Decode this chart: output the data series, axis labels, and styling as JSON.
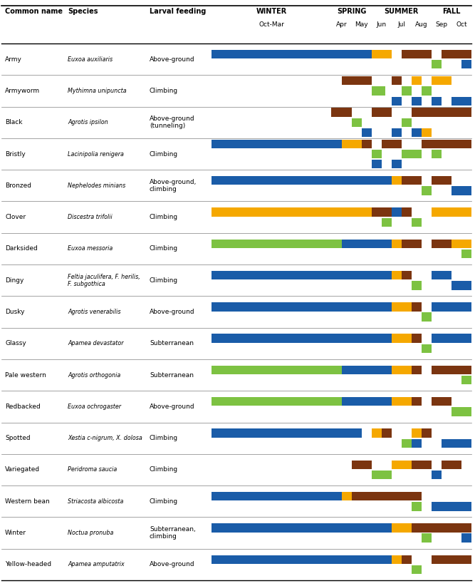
{
  "colors": {
    "blue": "#1A5CA8",
    "orange": "#F5A800",
    "brown": "#7B3510",
    "green": "#7DC242"
  },
  "seasons_info": [
    [
      "WINTER",
      0,
      6
    ],
    [
      "SPRING",
      6,
      8
    ],
    [
      "SUMMER",
      8,
      11
    ],
    [
      "FALL",
      11,
      13
    ]
  ],
  "months_info": [
    [
      "Oct-Mar",
      0,
      6
    ],
    [
      "Apr",
      6,
      7
    ],
    [
      "May",
      7,
      8
    ],
    [
      "Jun",
      8,
      9
    ],
    [
      "Jul",
      9,
      10
    ],
    [
      "Aug",
      10,
      11
    ],
    [
      "Sep",
      11,
      12
    ],
    [
      "Oct",
      12,
      13
    ]
  ],
  "time_total": 13,
  "species": [
    {
      "common": "Army",
      "species": "Euxoa auxiliaris",
      "feeding": "Above-ground",
      "rows": [
        [
          {
            "s": 0,
            "e": 8,
            "c": "blue"
          },
          {
            "s": 8,
            "e": 9,
            "c": "orange"
          },
          {
            "s": 9.5,
            "e": 11,
            "c": "brown"
          },
          {
            "s": 11.5,
            "e": 13,
            "c": "brown"
          }
        ],
        [
          {
            "s": 11,
            "e": 11.5,
            "c": "green"
          },
          {
            "s": 12.5,
            "e": 13,
            "c": "blue"
          }
        ]
      ]
    },
    {
      "common": "Armyworm",
      "species": "Mythimna unipuncta",
      "feeding": "Climbing",
      "rows": [
        [
          {
            "s": 6.5,
            "e": 8,
            "c": "brown"
          },
          {
            "s": 9,
            "e": 9.5,
            "c": "brown"
          },
          {
            "s": 10,
            "e": 10.5,
            "c": "orange"
          },
          {
            "s": 11,
            "e": 12,
            "c": "orange"
          }
        ],
        [
          {
            "s": 8,
            "e": 8.7,
            "c": "green"
          },
          {
            "s": 9.5,
            "e": 10,
            "c": "green"
          },
          {
            "s": 10.5,
            "e": 11,
            "c": "green"
          }
        ],
        [
          {
            "s": 9,
            "e": 9.5,
            "c": "blue"
          },
          {
            "s": 10,
            "e": 10.5,
            "c": "blue"
          },
          {
            "s": 11,
            "e": 11.5,
            "c": "blue"
          },
          {
            "s": 12,
            "e": 13,
            "c": "blue"
          }
        ]
      ]
    },
    {
      "common": "Black",
      "species": "Agrotis ipsilon",
      "feeding": "Above-ground\n(tunneling)",
      "rows": [
        [
          {
            "s": 6,
            "e": 7,
            "c": "brown"
          },
          {
            "s": 8,
            "e": 9,
            "c": "brown"
          },
          {
            "s": 10,
            "e": 13,
            "c": "brown"
          }
        ],
        [
          {
            "s": 7,
            "e": 7.5,
            "c": "green"
          },
          {
            "s": 9.5,
            "e": 10,
            "c": "green"
          }
        ],
        [
          {
            "s": 7.5,
            "e": 8,
            "c": "blue"
          },
          {
            "s": 9,
            "e": 9.5,
            "c": "blue"
          },
          {
            "s": 10,
            "e": 10.5,
            "c": "blue"
          },
          {
            "s": 10.5,
            "e": 11,
            "c": "orange"
          }
        ]
      ]
    },
    {
      "common": "Bristly",
      "species": "Lacinipolia renigera",
      "feeding": "Climbing",
      "rows": [
        [
          {
            "s": 0,
            "e": 6.5,
            "c": "blue"
          },
          {
            "s": 6.5,
            "e": 7.5,
            "c": "orange"
          },
          {
            "s": 7.5,
            "e": 8,
            "c": "brown"
          },
          {
            "s": 8.5,
            "e": 9.5,
            "c": "brown"
          },
          {
            "s": 10.5,
            "e": 11,
            "c": "brown"
          },
          {
            "s": 11,
            "e": 13,
            "c": "brown"
          }
        ],
        [
          {
            "s": 8,
            "e": 8.5,
            "c": "green"
          },
          {
            "s": 9.5,
            "e": 10.5,
            "c": "green"
          },
          {
            "s": 11,
            "e": 11.5,
            "c": "green"
          }
        ],
        [
          {
            "s": 8,
            "e": 8.5,
            "c": "blue"
          },
          {
            "s": 9,
            "e": 9.5,
            "c": "blue"
          }
        ]
      ]
    },
    {
      "common": "Bronzed",
      "species": "Nephelodes minians",
      "feeding": "Above-ground,\nclimbing",
      "rows": [
        [
          {
            "s": 0,
            "e": 9,
            "c": "blue"
          },
          {
            "s": 9,
            "e": 9.5,
            "c": "orange"
          },
          {
            "s": 9.5,
            "e": 10.5,
            "c": "brown"
          },
          {
            "s": 11,
            "e": 12,
            "c": "brown"
          }
        ],
        [
          {
            "s": 10.5,
            "e": 11,
            "c": "green"
          },
          {
            "s": 12,
            "e": 13,
            "c": "blue"
          }
        ]
      ]
    },
    {
      "common": "Clover",
      "species": "Discestra trifolii",
      "feeding": "Climbing",
      "rows": [
        [
          {
            "s": 0,
            "e": 8,
            "c": "orange"
          },
          {
            "s": 8,
            "e": 9,
            "c": "brown"
          },
          {
            "s": 9,
            "e": 9.5,
            "c": "blue"
          },
          {
            "s": 9.5,
            "e": 10,
            "c": "brown"
          },
          {
            "s": 11,
            "e": 12,
            "c": "orange"
          },
          {
            "s": 12,
            "e": 13,
            "c": "orange"
          }
        ],
        [
          {
            "s": 8.5,
            "e": 9,
            "c": "green"
          },
          {
            "s": 10,
            "e": 10.5,
            "c": "green"
          }
        ]
      ]
    },
    {
      "common": "Darksided",
      "species": "Euxoa messoria",
      "feeding": "Climbing",
      "rows": [
        [
          {
            "s": 0,
            "e": 6.5,
            "c": "green"
          },
          {
            "s": 6.5,
            "e": 9,
            "c": "blue"
          },
          {
            "s": 9,
            "e": 9.5,
            "c": "orange"
          },
          {
            "s": 9.5,
            "e": 10.5,
            "c": "brown"
          },
          {
            "s": 11,
            "e": 12,
            "c": "brown"
          },
          {
            "s": 12,
            "e": 13,
            "c": "orange"
          }
        ],
        [
          {
            "s": 12.5,
            "e": 13,
            "c": "green"
          }
        ]
      ]
    },
    {
      "common": "Dingy",
      "species": "Feltia jaculifera, F. herilis,\nF. subgothica",
      "feeding": "Climbing",
      "rows": [
        [
          {
            "s": 0,
            "e": 9,
            "c": "blue"
          },
          {
            "s": 9,
            "e": 9.5,
            "c": "orange"
          },
          {
            "s": 9.5,
            "e": 10,
            "c": "brown"
          },
          {
            "s": 11,
            "e": 12,
            "c": "blue"
          }
        ],
        [
          {
            "s": 10,
            "e": 10.5,
            "c": "green"
          },
          {
            "s": 12,
            "e": 13,
            "c": "blue"
          }
        ]
      ]
    },
    {
      "common": "Dusky",
      "species": "Agrotis venerabilis",
      "feeding": "Above-ground",
      "rows": [
        [
          {
            "s": 0,
            "e": 9,
            "c": "blue"
          },
          {
            "s": 9,
            "e": 10,
            "c": "orange"
          },
          {
            "s": 10,
            "e": 10.5,
            "c": "brown"
          },
          {
            "s": 11,
            "e": 13,
            "c": "blue"
          }
        ],
        [
          {
            "s": 10.5,
            "e": 11,
            "c": "green"
          }
        ]
      ]
    },
    {
      "common": "Glassy",
      "species": "Apamea devastator",
      "feeding": "Subterranean",
      "rows": [
        [
          {
            "s": 0,
            "e": 9,
            "c": "blue"
          },
          {
            "s": 9,
            "e": 10,
            "c": "orange"
          },
          {
            "s": 10,
            "e": 10.5,
            "c": "brown"
          },
          {
            "s": 11,
            "e": 13,
            "c": "blue"
          }
        ],
        [
          {
            "s": 10.5,
            "e": 11,
            "c": "green"
          }
        ]
      ]
    },
    {
      "common": "Pale western",
      "species": "Agrotis orthogonia",
      "feeding": "Subterranean",
      "rows": [
        [
          {
            "s": 0,
            "e": 6.5,
            "c": "green"
          },
          {
            "s": 6.5,
            "e": 9,
            "c": "blue"
          },
          {
            "s": 9,
            "e": 10,
            "c": "orange"
          },
          {
            "s": 10,
            "e": 10.5,
            "c": "brown"
          },
          {
            "s": 11,
            "e": 13,
            "c": "brown"
          }
        ],
        [
          {
            "s": 12.5,
            "e": 13,
            "c": "green"
          }
        ]
      ]
    },
    {
      "common": "Redbacked",
      "species": "Euxoa ochrogaster",
      "feeding": "Above-ground",
      "rows": [
        [
          {
            "s": 0,
            "e": 6.5,
            "c": "green"
          },
          {
            "s": 6.5,
            "e": 9,
            "c": "blue"
          },
          {
            "s": 9,
            "e": 10,
            "c": "orange"
          },
          {
            "s": 10,
            "e": 10.5,
            "c": "brown"
          },
          {
            "s": 11,
            "e": 12,
            "c": "brown"
          }
        ],
        [
          {
            "s": 12,
            "e": 13,
            "c": "green"
          }
        ]
      ]
    },
    {
      "common": "Spotted",
      "species": "Xestia c-nigrum, X. dolosa",
      "feeding": "Climbing",
      "rows": [
        [
          {
            "s": 0,
            "e": 7.5,
            "c": "blue"
          },
          {
            "s": 8,
            "e": 8.5,
            "c": "orange"
          },
          {
            "s": 8.5,
            "e": 9,
            "c": "brown"
          },
          {
            "s": 10,
            "e": 10.5,
            "c": "orange"
          },
          {
            "s": 10.5,
            "e": 11,
            "c": "brown"
          }
        ],
        [
          {
            "s": 9.5,
            "e": 10,
            "c": "green"
          },
          {
            "s": 10,
            "e": 10.5,
            "c": "blue"
          },
          {
            "s": 11.5,
            "e": 12,
            "c": "blue"
          },
          {
            "s": 12,
            "e": 13,
            "c": "blue"
          }
        ]
      ]
    },
    {
      "common": "Variegated",
      "species": "Peridroma saucia",
      "feeding": "Climbing",
      "rows": [
        [
          {
            "s": 7,
            "e": 8,
            "c": "brown"
          },
          {
            "s": 9,
            "e": 10,
            "c": "orange"
          },
          {
            "s": 10,
            "e": 11,
            "c": "brown"
          },
          {
            "s": 11.5,
            "e": 12.5,
            "c": "brown"
          }
        ],
        [
          {
            "s": 8,
            "e": 9,
            "c": "green"
          },
          {
            "s": 11,
            "e": 11.5,
            "c": "blue"
          }
        ]
      ]
    },
    {
      "common": "Western bean",
      "species": "Striacosta albicosta",
      "feeding": "Climbing",
      "rows": [
        [
          {
            "s": 0,
            "e": 6.5,
            "c": "blue"
          },
          {
            "s": 6.5,
            "e": 7,
            "c": "orange"
          },
          {
            "s": 7,
            "e": 9,
            "c": "brown"
          },
          {
            "s": 9,
            "e": 10.5,
            "c": "brown"
          }
        ],
        [
          {
            "s": 10,
            "e": 10.5,
            "c": "green"
          },
          {
            "s": 11,
            "e": 13,
            "c": "blue"
          }
        ]
      ]
    },
    {
      "common": "Winter",
      "species": "Noctua pronuba",
      "feeding": "Subterranean,\nclimbing",
      "rows": [
        [
          {
            "s": 0,
            "e": 9,
            "c": "blue"
          },
          {
            "s": 9,
            "e": 10,
            "c": "orange"
          },
          {
            "s": 10,
            "e": 11,
            "c": "brown"
          },
          {
            "s": 11,
            "e": 13,
            "c": "brown"
          }
        ],
        [
          {
            "s": 10.5,
            "e": 11,
            "c": "green"
          },
          {
            "s": 12.5,
            "e": 13,
            "c": "blue"
          }
        ]
      ]
    },
    {
      "common": "Yellow-headed",
      "species": "Apamea amputatrix",
      "feeding": "Above-ground",
      "rows": [
        [
          {
            "s": 0,
            "e": 9,
            "c": "blue"
          },
          {
            "s": 9,
            "e": 9.5,
            "c": "orange"
          },
          {
            "s": 9.5,
            "e": 10,
            "c": "brown"
          },
          {
            "s": 11,
            "e": 13,
            "c": "brown"
          }
        ],
        [
          {
            "s": 10,
            "e": 10.5,
            "c": "green"
          }
        ]
      ]
    }
  ]
}
